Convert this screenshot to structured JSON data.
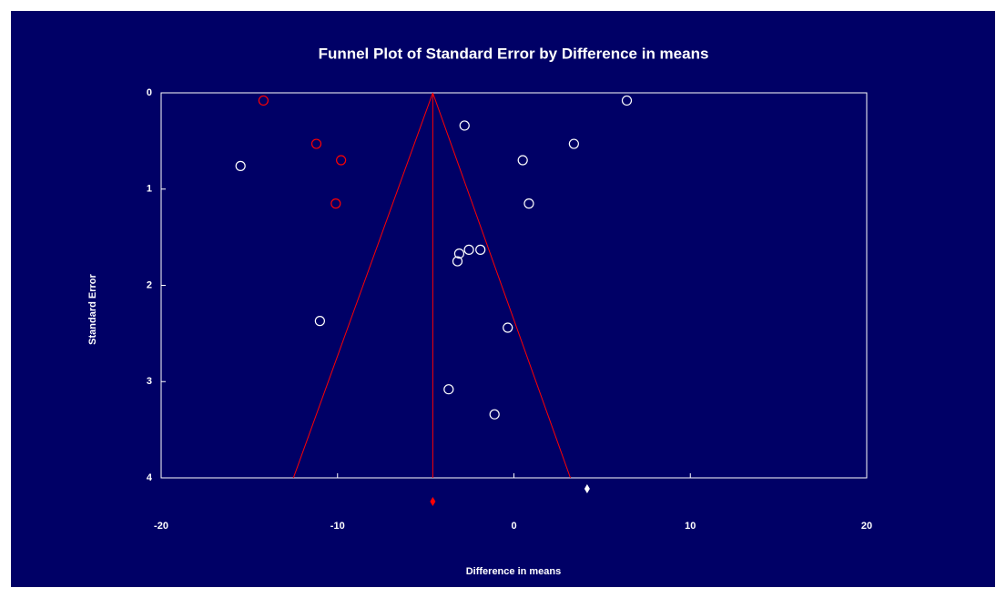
{
  "chart_data": {
    "type": "funnel",
    "title": "Funnel Plot of Standard Error by Difference in means",
    "x_label": "Difference in means",
    "y_label": "Standard Error",
    "xlim": [
      -20,
      20
    ],
    "ylim": [
      0,
      4
    ],
    "y_inverted": true,
    "xticks": [
      -20,
      -10,
      0,
      10,
      20
    ],
    "yticks": [
      0,
      1,
      2,
      3,
      4
    ],
    "background": "#000066",
    "axis_color": "#ffffff",
    "funnel_color": "#ff0000",
    "funnel_center": -4.6,
    "funnel_left": {
      "x": [
        -4.6,
        -12.5
      ],
      "y": [
        0,
        4
      ]
    },
    "funnel_right": {
      "x": [
        -4.6,
        3.2
      ],
      "y": [
        0,
        4
      ]
    },
    "series": [
      {
        "color": "#ffffff",
        "x": [
          6.4,
          -2.8,
          3.4,
          0.5,
          -15.5,
          0.85,
          -1.9,
          -2.55,
          -3.1,
          -3.2,
          -11.0,
          -0.35,
          -3.7,
          -1.1
        ],
        "values": [
          0.08,
          0.34,
          0.53,
          0.7,
          0.76,
          1.15,
          1.63,
          1.63,
          1.67,
          1.75,
          2.37,
          2.44,
          3.08,
          3.34
        ]
      },
      {
        "color": "#ff0000",
        "x": [
          -14.2,
          -11.2,
          -9.8,
          -10.1
        ],
        "values": [
          0.08,
          0.53,
          0.7,
          1.15
        ]
      }
    ],
    "estimates": [
      {
        "color": "#ffffff",
        "value": 4.15
      },
      {
        "color": "#ff0000",
        "value": -4.6
      }
    ]
  }
}
